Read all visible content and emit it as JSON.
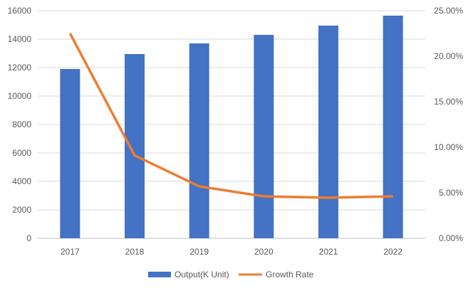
{
  "chart_data": {
    "type": "bar+line",
    "categories": [
      "2017",
      "2018",
      "2019",
      "2020",
      "2021",
      "2022"
    ],
    "series": [
      {
        "name": "Output(K Unit)",
        "type": "bar",
        "axis": "left",
        "color": "#4472C4",
        "values": [
          11900,
          12950,
          13700,
          14300,
          14950,
          15650
        ]
      },
      {
        "name": "Growth Rate",
        "type": "line",
        "axis": "right",
        "color": "#ED7D31",
        "values": [
          22.5,
          9.1,
          5.7,
          4.6,
          4.45,
          4.6
        ]
      }
    ],
    "left_axis": {
      "ylim": [
        0,
        16000
      ],
      "ticks": [
        "0",
        "2000",
        "4000",
        "6000",
        "8000",
        "10000",
        "12000",
        "14000",
        "16000"
      ]
    },
    "right_axis": {
      "ylim": [
        0,
        25
      ],
      "ticks": [
        "0.00%",
        "5.00%",
        "10.00%",
        "15.00%",
        "20.00%",
        "25.00%"
      ]
    },
    "grid": true,
    "legend": "bottom"
  }
}
